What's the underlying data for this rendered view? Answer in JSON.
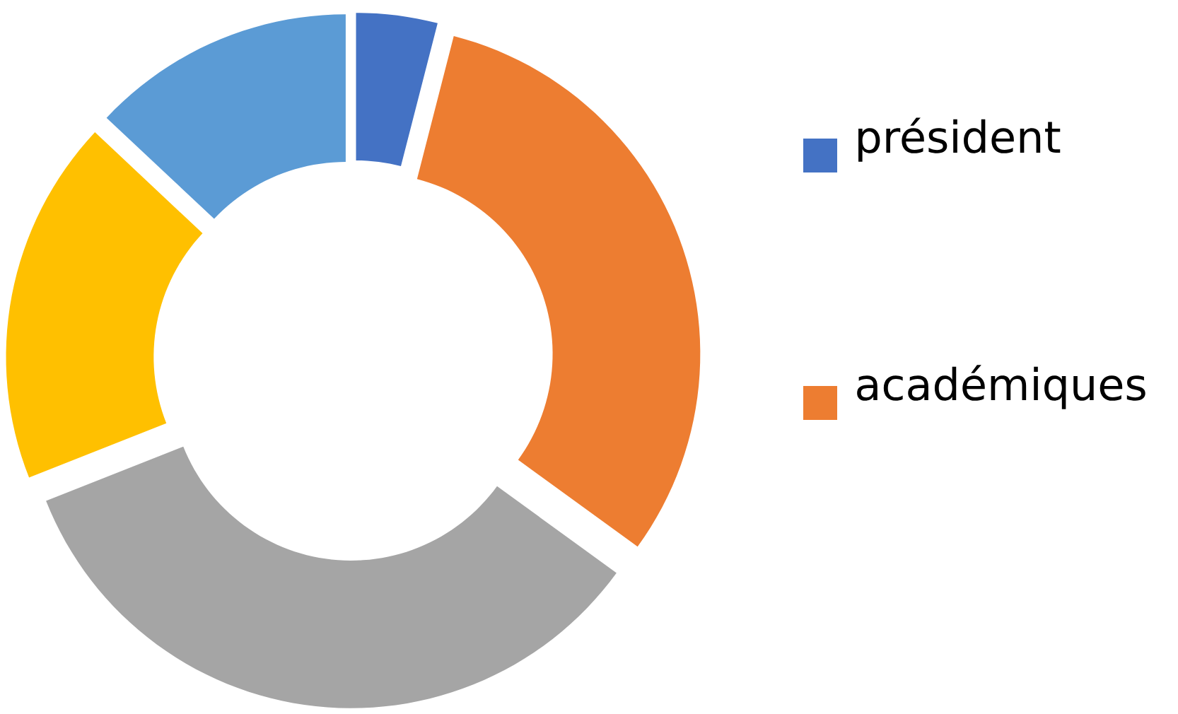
{
  "chart_data": {
    "type": "donut",
    "categories": [
      "président",
      "académiques",
      null,
      null,
      null
    ],
    "values": [
      4,
      31,
      34,
      18,
      13
    ],
    "colors": [
      "#4472c4",
      "#ed7d31",
      "#a5a5a5",
      "#ffc000",
      "#5b9bd5"
    ],
    "legend": "right"
  }
}
